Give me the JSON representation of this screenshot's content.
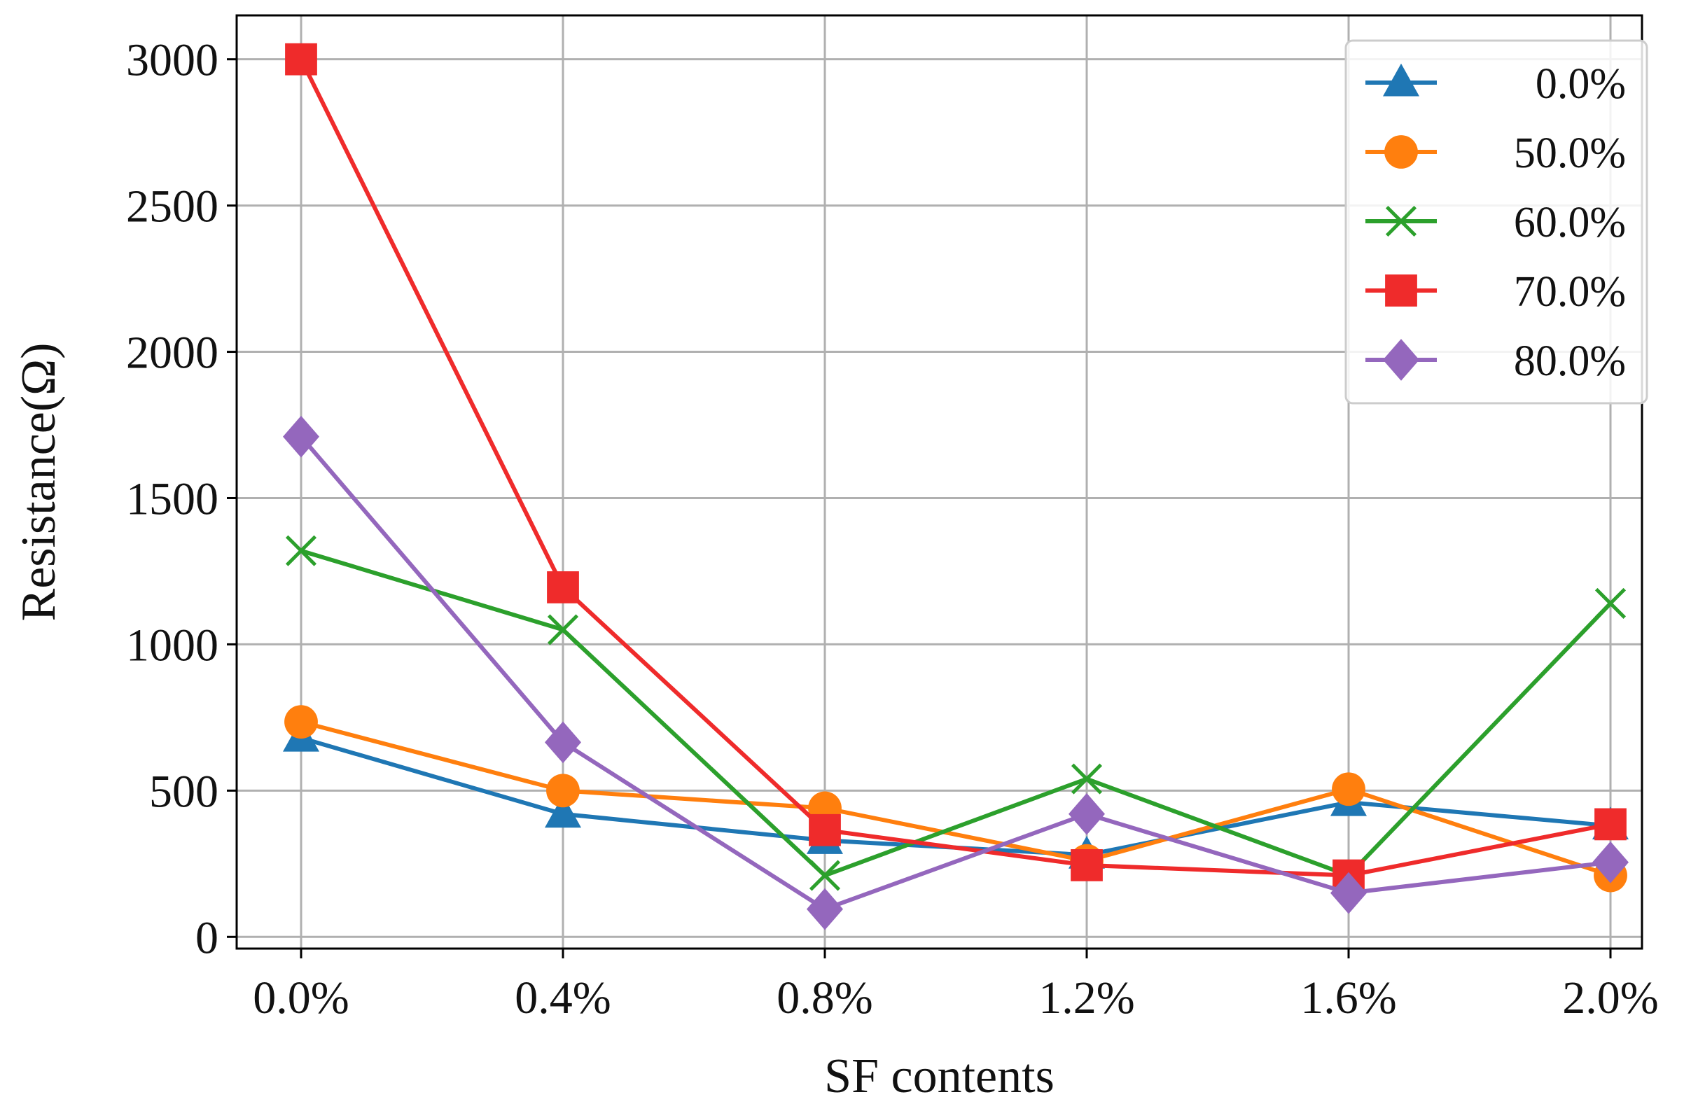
{
  "chart_data": {
    "type": "line",
    "xlabel": "SF contents",
    "ylabel": "Resistance(Ω)",
    "categories": [
      "0.0%",
      "0.4%",
      "0.8%",
      "1.2%",
      "1.6%",
      "2.0%"
    ],
    "ylim": [
      -40,
      3150
    ],
    "yticks": [
      0,
      500,
      1000,
      1500,
      2000,
      2500,
      3000
    ],
    "grid": true,
    "legend_position": "top-right",
    "series": [
      {
        "name": "0.0%",
        "color": "#1f77b4",
        "marker": "triangle",
        "values": [
          680,
          420,
          330,
          280,
          460,
          380
        ]
      },
      {
        "name": "50.0%",
        "color": "#ff7f0e",
        "marker": "circle",
        "values": [
          735,
          500,
          440,
          260,
          505,
          210
        ]
      },
      {
        "name": "60.0%",
        "color": "#2ca02c",
        "marker": "x",
        "values": [
          1320,
          1050,
          210,
          540,
          210,
          1140
        ]
      },
      {
        "name": "70.0%",
        "color": "#ef2b2b",
        "marker": "square",
        "values": [
          3000,
          1195,
          365,
          245,
          210,
          385
        ]
      },
      {
        "name": "80.0%",
        "color": "#9467bd",
        "marker": "diamond",
        "values": [
          1710,
          665,
          95,
          420,
          150,
          255
        ]
      }
    ]
  }
}
